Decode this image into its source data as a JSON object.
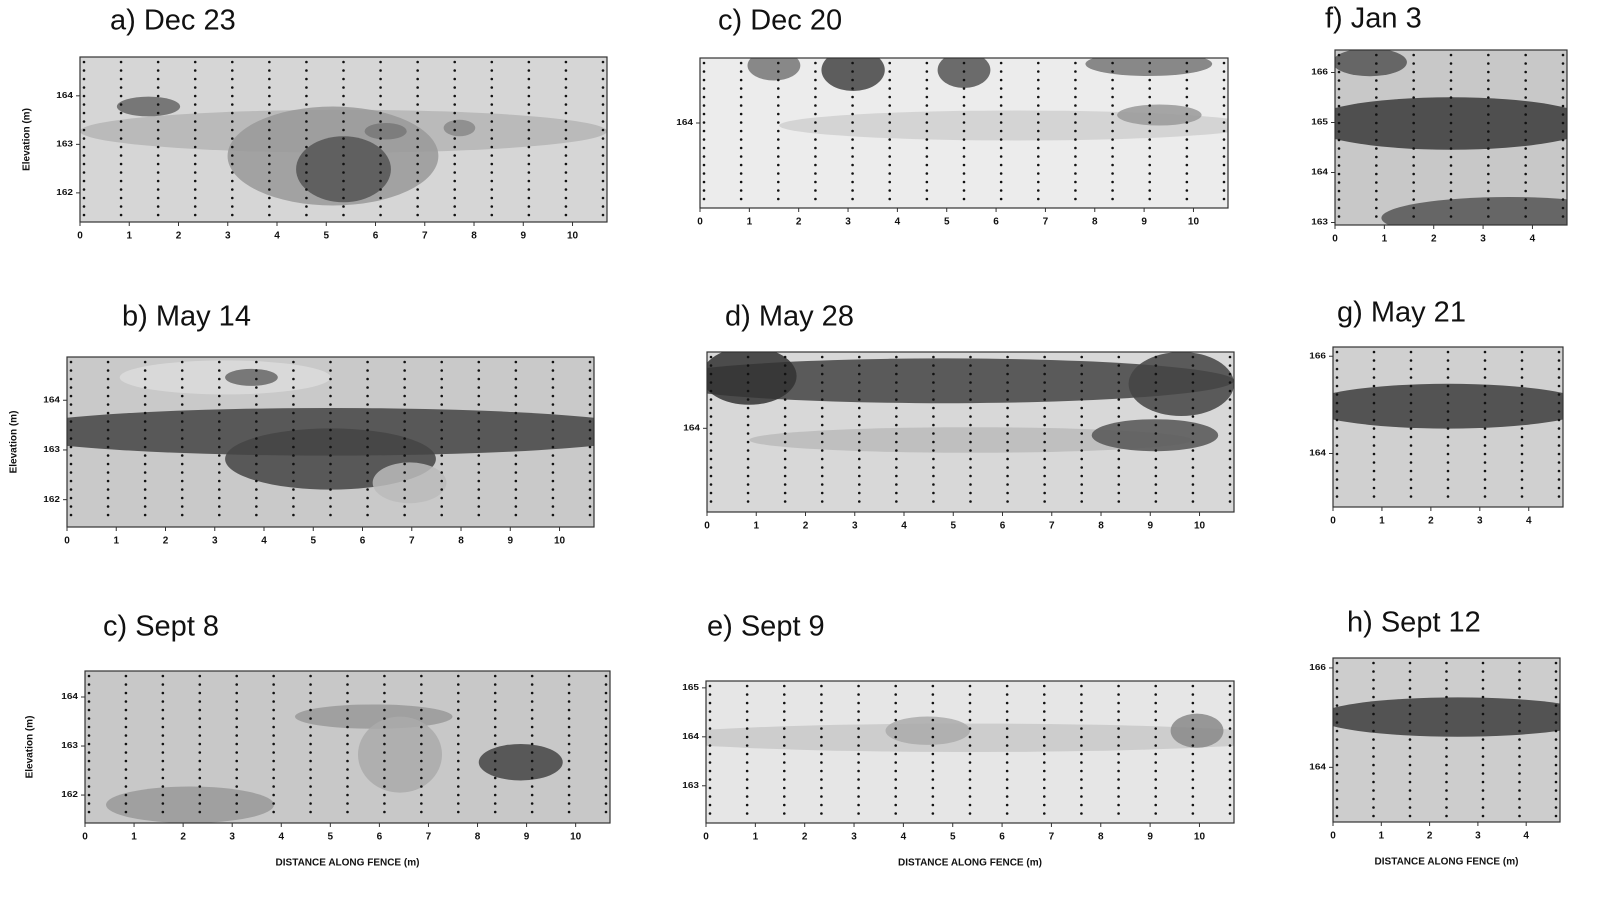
{
  "chart_data": [
    {
      "type": "contour",
      "title": "a) Dec 23",
      "ylabel": "Elevation (m)",
      "xlim": [
        0,
        10.7
      ],
      "ylim": [
        161.4,
        164.8
      ],
      "xticks": [
        0,
        1,
        2,
        3,
        4,
        5,
        6,
        7,
        8,
        9,
        10
      ],
      "yticks": [
        162,
        163,
        164
      ]
    },
    {
      "type": "contour",
      "title": "b) May 14",
      "ylabel": "Elevation (m)",
      "xlim": [
        0,
        10.7
      ],
      "ylim": [
        161.45,
        164.87
      ],
      "xticks": [
        0,
        1,
        2,
        3,
        4,
        5,
        6,
        7,
        8,
        9,
        10
      ],
      "yticks": [
        162,
        163,
        164
      ]
    },
    {
      "type": "contour",
      "title": "c) Sept 8",
      "ylabel": "Elevation (m)",
      "xlabel": "DISTANCE ALONG FENCE (m)",
      "xlim": [
        0,
        10.7
      ],
      "ylim": [
        161.43,
        164.53
      ],
      "xticks": [
        0,
        1,
        2,
        3,
        4,
        5,
        6,
        7,
        8,
        9,
        10
      ],
      "yticks": [
        162,
        163,
        164
      ]
    },
    {
      "type": "contour",
      "title": "c) Dec 20",
      "xlim": [
        0,
        10.7
      ],
      "ylim": [
        162.3,
        165.3
      ],
      "xticks": [
        0,
        1,
        2,
        3,
        4,
        5,
        6,
        7,
        8,
        9,
        10
      ],
      "yticks": [
        164
      ]
    },
    {
      "type": "contour",
      "title": "d) May 28",
      "xlim": [
        0,
        10.7
      ],
      "ylim": [
        162.3,
        165.55
      ],
      "xticks": [
        0,
        1,
        2,
        3,
        4,
        5,
        6,
        7,
        8,
        9,
        10
      ],
      "yticks": [
        164
      ]
    },
    {
      "type": "contour",
      "title": "e) Sept 9",
      "xlabel": "DISTANCE ALONG FENCE (m)",
      "xlim": [
        0,
        10.7
      ],
      "ylim": [
        162.24,
        165.14
      ],
      "xticks": [
        0,
        1,
        2,
        3,
        4,
        5,
        6,
        7,
        8,
        9,
        10
      ],
      "yticks": [
        163,
        164,
        165
      ]
    },
    {
      "type": "contour",
      "title": "f) Jan 3",
      "xlim": [
        0,
        4.7
      ],
      "ylim": [
        162.95,
        166.45
      ],
      "xticks": [
        0,
        1,
        2,
        3,
        4
      ],
      "yticks": [
        163,
        164,
        165,
        166
      ]
    },
    {
      "type": "contour",
      "title": "g) May 21",
      "xlim": [
        0,
        4.7
      ],
      "ylim": [
        162.9,
        166.19
      ],
      "xticks": [
        0,
        1,
        2,
        3,
        4
      ],
      "yticks": [
        164,
        166
      ]
    },
    {
      "type": "contour",
      "title": "h) Sept 12",
      "xlabel": "DISTANCE ALONG FENCE (m)",
      "xlim": [
        0,
        4.7
      ],
      "ylim": [
        162.9,
        166.2
      ],
      "xticks": [
        0,
        1,
        2,
        3,
        4
      ],
      "yticks": [
        164,
        166
      ]
    }
  ]
}
